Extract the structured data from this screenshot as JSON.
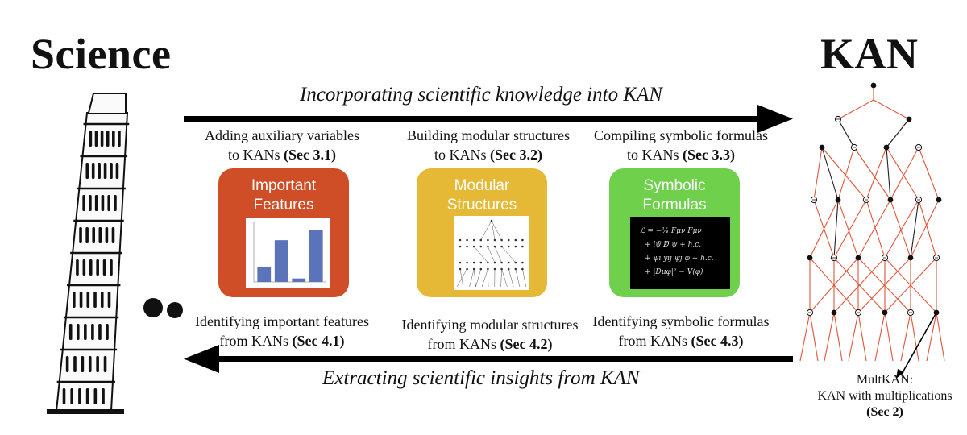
{
  "titles": {
    "left": "Science",
    "right": "KAN"
  },
  "arrows": {
    "top": "Incorporating scientific knowledge into KAN",
    "bottom": "Extracting scientific insights from KAN"
  },
  "top_captions": [
    {
      "line1": "Adding auxiliary variables",
      "prefix": "to KANs ",
      "sec": "(Sec 3.1)"
    },
    {
      "line1": "Building modular structures",
      "prefix": "to KANs ",
      "sec": "(Sec 3.2)"
    },
    {
      "line1": "Compiling symbolic formulas",
      "prefix": "to KANs ",
      "sec": "(Sec 3.3)"
    }
  ],
  "bottom_captions": [
    {
      "line1": "Identifying important features",
      "prefix": "from KANs ",
      "sec": "(Sec 4.1)"
    },
    {
      "line1": "Identifying modular structures",
      "prefix": "from KANs ",
      "sec": "(Sec 4.2)"
    },
    {
      "line1": "Identifying symbolic formulas",
      "prefix": "from KANs ",
      "sec": "(Sec 4.3)"
    }
  ],
  "cards": [
    {
      "line1": "Important",
      "line2": "Features",
      "color": "#d04e27"
    },
    {
      "line1": "Modular",
      "line2": "Structures",
      "color": "#e5b935"
    },
    {
      "line1": "Symbolic",
      "line2": "Formulas",
      "color": "#6fd04b"
    }
  ],
  "formula_lines": [
    "ℒ = −¼ Fμν Fμν",
    "+ iψ̄ D̸ ψ + h.c.",
    "+ ψi yij ψj φ + h.c.",
    "+ |Dμφ|² − V(φ)"
  ],
  "mini_bar_chart": {
    "type": "bar",
    "values": [
      0.25,
      0.72,
      0.06,
      0.9
    ],
    "ylim": [
      0,
      1
    ]
  },
  "mult_kan": {
    "line1": "MultKAN:",
    "line2": "KAN with multiplications",
    "sec": "(Sec 2)"
  },
  "colors": {
    "network_edge": "#e0553a",
    "node": "#111111"
  }
}
